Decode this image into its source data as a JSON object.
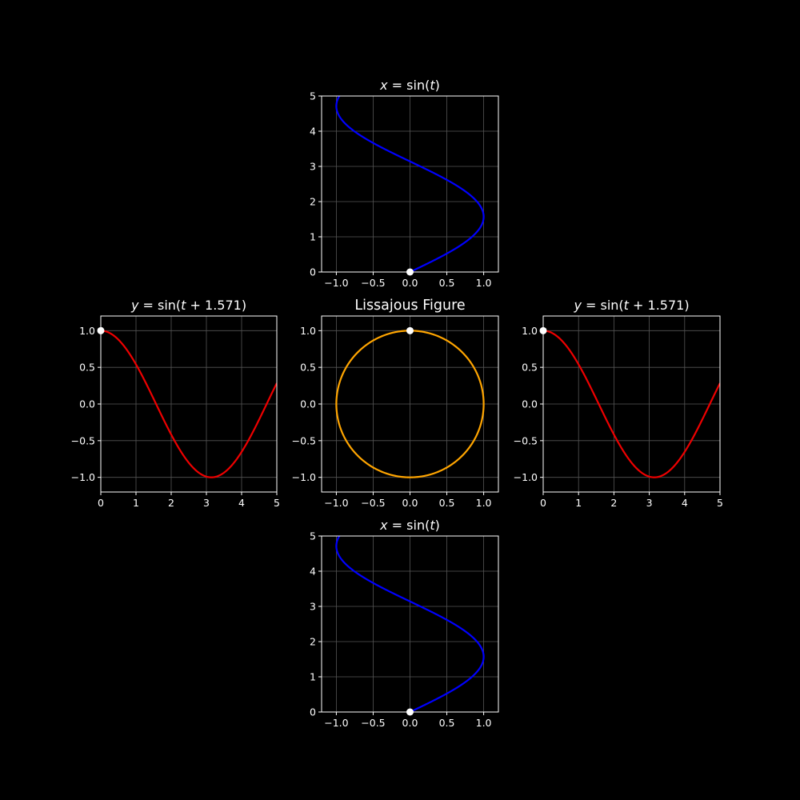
{
  "figure": {
    "background": "#000000",
    "axes_color": "#ffffff",
    "grid_color": "#555555"
  },
  "chart_data": [
    {
      "id": "top",
      "type": "line",
      "title": "x = sin(t)",
      "title_parts": [
        {
          "t": "x",
          "i": true
        },
        {
          "t": " = sin("
        },
        {
          "t": "t",
          "i": true
        },
        {
          "t": ")"
        }
      ],
      "xlim": [
        -1.2,
        1.2
      ],
      "ylim": [
        0,
        5
      ],
      "xticks": [
        -1.0,
        -0.5,
        0.0,
        0.5,
        1.0
      ],
      "xtick_labels": [
        "−1.0",
        "−0.5",
        "0.0",
        "0.5",
        "1.0"
      ],
      "yticks": [
        0,
        1,
        2,
        3,
        4,
        5
      ],
      "ytick_labels": [
        "0",
        "1",
        "2",
        "3",
        "4",
        "5"
      ],
      "grid": true,
      "series": [
        {
          "function": "x = sin(t), y = t",
          "t_range": [
            0,
            5
          ],
          "color": "#0000ff"
        }
      ],
      "marker": {
        "x": 0,
        "y": 0,
        "color": "#ffffff"
      }
    },
    {
      "id": "left",
      "type": "line",
      "title": "y = sin(t + 1.571)",
      "title_parts": [
        {
          "t": "y",
          "i": true
        },
        {
          "t": " = sin("
        },
        {
          "t": "t",
          "i": true
        },
        {
          "t": " + 1.571)"
        }
      ],
      "xlim": [
        0,
        5
      ],
      "ylim": [
        -1.2,
        1.2
      ],
      "xticks": [
        0,
        1,
        2,
        3,
        4,
        5
      ],
      "xtick_labels": [
        "0",
        "1",
        "2",
        "3",
        "4",
        "5"
      ],
      "yticks": [
        -1.0,
        -0.5,
        0.0,
        0.5,
        1.0
      ],
      "ytick_labels": [
        "−1.0",
        "−0.5",
        "0.0",
        "0.5",
        "1.0"
      ],
      "grid": true,
      "series": [
        {
          "function": "x = t, y = sin(t + 1.571)",
          "t_range": [
            0,
            5
          ],
          "color": "#ee0000"
        }
      ],
      "marker": {
        "x": 0,
        "y": 1.0,
        "color": "#ffffff"
      }
    },
    {
      "id": "center",
      "type": "line",
      "title": "Lissajous Figure",
      "xlim": [
        -1.2,
        1.2
      ],
      "ylim": [
        -1.2,
        1.2
      ],
      "xticks": [
        -1.0,
        -0.5,
        0.0,
        0.5,
        1.0
      ],
      "xtick_labels": [
        "−1.0",
        "−0.5",
        "0.0",
        "0.5",
        "1.0"
      ],
      "yticks": [
        -1.0,
        -0.5,
        0.0,
        0.5,
        1.0
      ],
      "ytick_labels": [
        "−1.0",
        "−0.5",
        "0.0",
        "0.5",
        "1.0"
      ],
      "grid": true,
      "series": [
        {
          "function": "x = sin(t), y = sin(t + 1.571)",
          "t_range": [
            0,
            6.2832
          ],
          "color": "#ffa500"
        }
      ],
      "marker": {
        "x": 0,
        "y": 1.0,
        "color": "#ffffff"
      }
    },
    {
      "id": "right",
      "type": "line",
      "title": "y = sin(t + 1.571)",
      "title_parts": [
        {
          "t": "y",
          "i": true
        },
        {
          "t": " = sin("
        },
        {
          "t": "t",
          "i": true
        },
        {
          "t": " + 1.571)"
        }
      ],
      "xlim": [
        0,
        5
      ],
      "ylim": [
        -1.2,
        1.2
      ],
      "xticks": [
        0,
        1,
        2,
        3,
        4,
        5
      ],
      "xtick_labels": [
        "0",
        "1",
        "2",
        "3",
        "4",
        "5"
      ],
      "yticks": [
        -1.0,
        -0.5,
        0.0,
        0.5,
        1.0
      ],
      "ytick_labels": [
        "−1.0",
        "−0.5",
        "0.0",
        "0.5",
        "1.0"
      ],
      "grid": true,
      "series": [
        {
          "function": "x = t, y = sin(t + 1.571)",
          "t_range": [
            0,
            5
          ],
          "color": "#ee0000"
        }
      ],
      "marker": {
        "x": 0,
        "y": 1.0,
        "color": "#ffffff"
      }
    },
    {
      "id": "bottom",
      "type": "line",
      "title": "x = sin(t)",
      "title_parts": [
        {
          "t": "x",
          "i": true
        },
        {
          "t": " = sin("
        },
        {
          "t": "t",
          "i": true
        },
        {
          "t": ")"
        }
      ],
      "xlim": [
        -1.2,
        1.2
      ],
      "ylim": [
        0,
        5
      ],
      "xticks": [
        -1.0,
        -0.5,
        0.0,
        0.5,
        1.0
      ],
      "xtick_labels": [
        "−1.0",
        "−0.5",
        "0.0",
        "0.5",
        "1.0"
      ],
      "yticks": [
        0,
        1,
        2,
        3,
        4,
        5
      ],
      "ytick_labels": [
        "0",
        "1",
        "2",
        "3",
        "4",
        "5"
      ],
      "grid": true,
      "series": [
        {
          "function": "x = sin(t), y = t",
          "t_range": [
            0,
            5
          ],
          "color": "#0000ff"
        }
      ],
      "marker": {
        "x": 0,
        "y": 0,
        "color": "#ffffff"
      }
    }
  ]
}
